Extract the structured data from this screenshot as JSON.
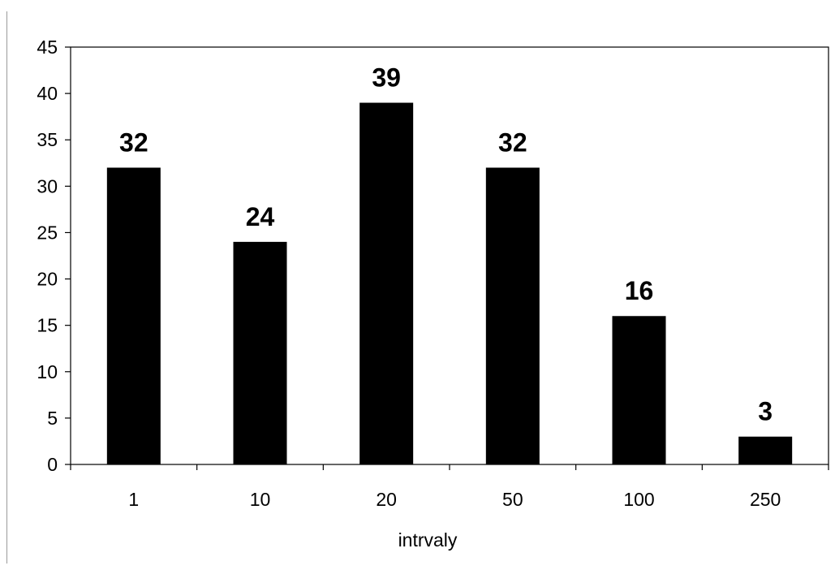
{
  "chart_data": {
    "type": "bar",
    "title": "",
    "xlabel": "intrvaly",
    "ylabel": "",
    "categories": [
      "1",
      "10",
      "20",
      "50",
      "100",
      "250"
    ],
    "values": [
      32,
      24,
      39,
      32,
      16,
      3
    ],
    "data_labels": [
      "32",
      "24",
      "39",
      "32",
      "16",
      "3"
    ],
    "ylim": [
      0,
      45
    ],
    "y_ticks": [
      0,
      5,
      10,
      15,
      20,
      25,
      30,
      35,
      40,
      45
    ],
    "grid": false,
    "legend": "none",
    "bar_color": "#000000"
  }
}
